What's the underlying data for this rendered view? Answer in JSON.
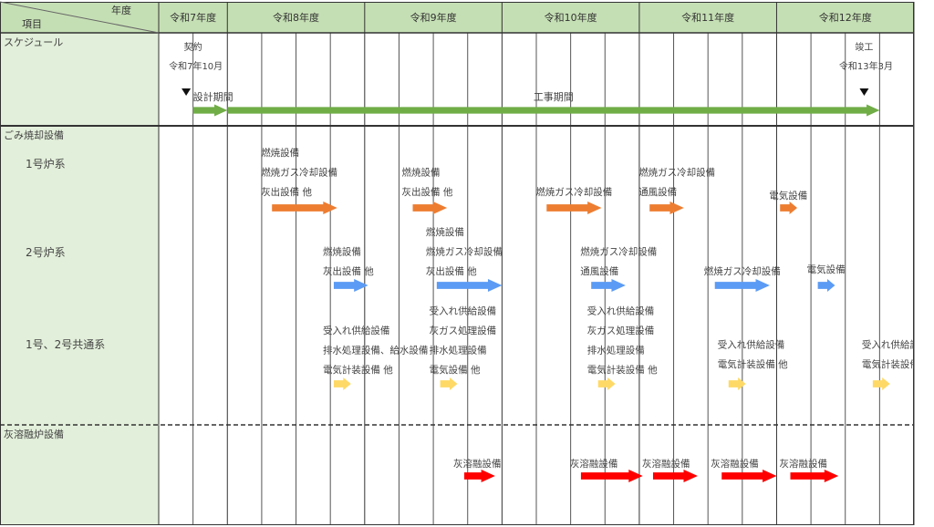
{
  "chart_data": {
    "type": "gantt",
    "title": "",
    "header": {
      "corner_top": "年度",
      "corner_bottom": "項目",
      "years": [
        "令和7年度",
        "令和8年度",
        "令和9年度",
        "令和10年度",
        "令和11年度",
        "令和12年度"
      ]
    },
    "colors": {
      "header_bg": "#c5dfb4",
      "label_bg": "#e2efda",
      "grid": "#333333",
      "schedule": "#70ad47",
      "furnace1": "#ed7d31",
      "furnace2": "#5b9bf5",
      "common": "#ffd966",
      "melting": "#ff0000",
      "label_text": "#555555"
    },
    "rows": {
      "schedule": "スケジュール",
      "incinerator": "ごみ焼却設備",
      "furnace1": "1号炉系",
      "furnace2": "2号炉系",
      "common": "1号、2号共通系",
      "melting": "灰溶融炉設備"
    },
    "milestones": [
      {
        "name": "契約",
        "date": "令和7年10月",
        "quarter": 1
      },
      {
        "name": "竣工",
        "date": "令和13年3月",
        "quarter": 20
      }
    ],
    "periods": [
      {
        "name": "設計期間",
        "start_quarter": 1,
        "end_quarter": 2
      },
      {
        "name": "工事期間",
        "start_quarter": 2,
        "end_quarter": 21
      }
    ],
    "tasks": [
      {
        "row": "furnace1",
        "start_quarter": 3.3,
        "end_quarter": 5.2,
        "labels": [
          "燃焼設備",
          "燃焼ガス冷却設備",
          "灰出設備 他"
        ]
      },
      {
        "row": "furnace1",
        "start_quarter": 7.4,
        "end_quarter": 8.4,
        "labels": [
          "燃焼設備",
          "灰出設備 他"
        ]
      },
      {
        "row": "furnace1",
        "start_quarter": 11.3,
        "end_quarter": 12.9,
        "labels": [
          "燃焼ガス冷却設備"
        ]
      },
      {
        "row": "furnace1",
        "start_quarter": 14.3,
        "end_quarter": 15.3,
        "labels": [
          "燃焼ガス冷却設備",
          "通風設備"
        ]
      },
      {
        "row": "furnace1",
        "start_quarter": 18.1,
        "end_quarter": 18.6,
        "labels": [
          "電気設備"
        ]
      },
      {
        "row": "furnace2",
        "start_quarter": 5.1,
        "end_quarter": 6.1,
        "labels": [
          "燃焼設備",
          "灰出設備 他"
        ]
      },
      {
        "row": "furnace2",
        "start_quarter": 8.1,
        "end_quarter": 10.0,
        "labels": [
          "燃焼設備",
          "燃焼ガス冷却設備",
          "灰出設備 他"
        ]
      },
      {
        "row": "furnace2",
        "start_quarter": 12.6,
        "end_quarter": 13.6,
        "labels": [
          "燃焼ガス冷却設備",
          "通風設備"
        ]
      },
      {
        "row": "furnace2",
        "start_quarter": 16.2,
        "end_quarter": 17.8,
        "labels": [
          "燃焼ガス冷却設備"
        ]
      },
      {
        "row": "furnace2",
        "start_quarter": 19.2,
        "end_quarter": 19.7,
        "labels": [
          "電気設備"
        ]
      },
      {
        "row": "common",
        "start_quarter": 5.1,
        "end_quarter": 5.6,
        "labels": [
          "受入れ供給設備",
          "排水処理設備、給水設備",
          "電気計装設備 他"
        ]
      },
      {
        "row": "common",
        "start_quarter": 8.2,
        "end_quarter": 8.7,
        "labels": [
          "受入れ供給設備",
          "灰ガス処理設備",
          "排水処理設備",
          "電気設備 他"
        ]
      },
      {
        "row": "common",
        "start_quarter": 12.8,
        "end_quarter": 13.3,
        "labels": [
          "受入れ供給設備",
          "灰ガス処理設備",
          "排水処理設備",
          "電気計装設備 他"
        ]
      },
      {
        "row": "common",
        "start_quarter": 16.6,
        "end_quarter": 17.1,
        "labels": [
          "受入れ供給設備",
          "電気計装設備 他"
        ]
      },
      {
        "row": "common",
        "start_quarter": 20.8,
        "end_quarter": 21.3,
        "labels": [
          "受入れ供給設備",
          "電気計装設備 他"
        ]
      },
      {
        "row": "melting",
        "start_quarter": 8.9,
        "end_quarter": 9.8,
        "labels": [
          "灰溶融設備"
        ]
      },
      {
        "row": "melting",
        "start_quarter": 12.3,
        "end_quarter": 14.1,
        "labels": [
          "灰溶融設備"
        ]
      },
      {
        "row": "melting",
        "start_quarter": 14.4,
        "end_quarter": 15.7,
        "labels": [
          "灰溶融設備"
        ]
      },
      {
        "row": "melting",
        "start_quarter": 16.4,
        "end_quarter": 18.0,
        "labels": [
          "灰溶融設備"
        ]
      },
      {
        "row": "melting",
        "start_quarter": 18.4,
        "end_quarter": 19.8,
        "labels": [
          "灰溶融設備"
        ]
      }
    ]
  }
}
